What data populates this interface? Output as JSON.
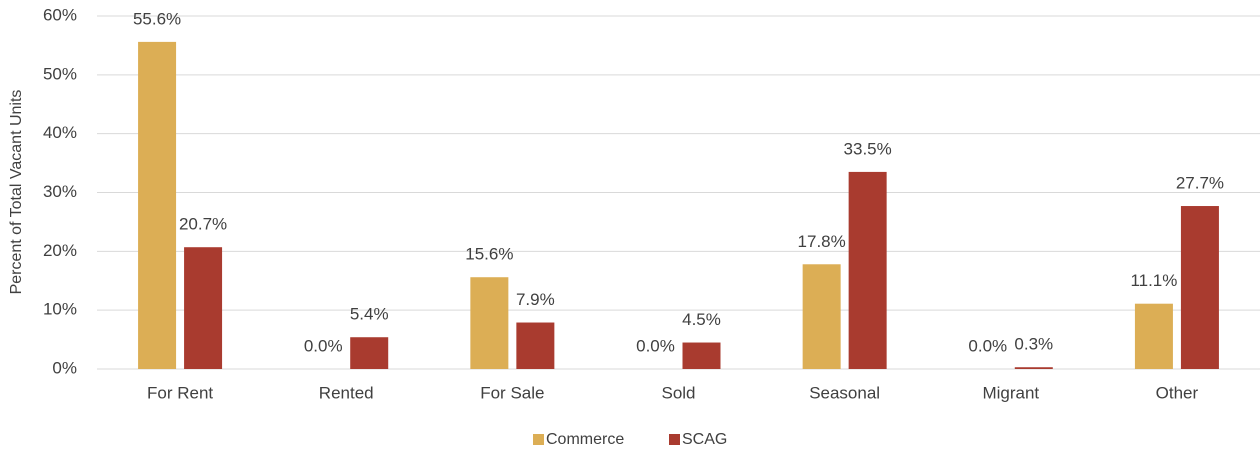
{
  "chart_data": {
    "type": "bar",
    "y_axis_label": "Percent of Total Vacant Units",
    "categories": [
      "For Rent",
      "Rented",
      "For Sale",
      "Sold",
      "Seasonal",
      "Migrant",
      "Other"
    ],
    "series": [
      {
        "name": "Commerce",
        "color": "#dcae55",
        "values": [
          55.6,
          0,
          15.6,
          0,
          17.8,
          0,
          11.1
        ],
        "value_labels": [
          "55.6%",
          "0.0%",
          "15.6%",
          "0.0%",
          "17.8%",
          "0.0%",
          "11.1%"
        ]
      },
      {
        "name": "SCAG",
        "color": "#a93b2f",
        "values": [
          20.7,
          5.4,
          7.9,
          4.5,
          33.5,
          0.3,
          27.7
        ],
        "value_labels": [
          "20.7%",
          "5.4%",
          "7.9%",
          "4.5%",
          "33.5%",
          "0.3%",
          "27.7%"
        ]
      }
    ],
    "ylim": [
      0,
      60
    ],
    "yticks": [
      {
        "value": 0,
        "label": "0%"
      },
      {
        "value": 10,
        "label": "10%"
      },
      {
        "value": 20,
        "label": "20%"
      },
      {
        "value": 30,
        "label": "30%"
      },
      {
        "value": 40,
        "label": "40%"
      },
      {
        "value": 50,
        "label": "50%"
      },
      {
        "value": 60,
        "label": "60%"
      }
    ],
    "grid": true,
    "legend": "bottom"
  }
}
